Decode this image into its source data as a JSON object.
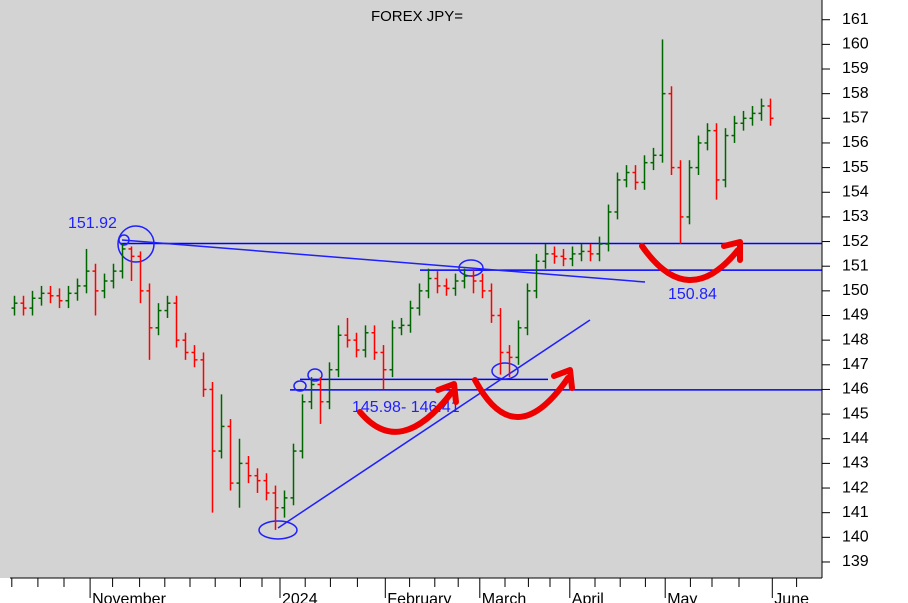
{
  "chart_data": {
    "type": "ohlc",
    "title": "FOREX JPY=",
    "up_color": "#006400",
    "down_color": "#ff0000",
    "ylim": [
      138.35,
      161.8
    ],
    "yticks": [
      139,
      140,
      141,
      142,
      143,
      144,
      145,
      146,
      147,
      148,
      149,
      150,
      151,
      152,
      153,
      154,
      155,
      156,
      157,
      158,
      159,
      160,
      161
    ],
    "xlim": [
      0,
      90
    ],
    "xticks": [
      {
        "value": 8.9,
        "label": "November"
      },
      {
        "value": 30,
        "label": "2024"
      },
      {
        "value": 41.7,
        "label": "February"
      },
      {
        "value": 52.2,
        "label": "March"
      },
      {
        "value": 62.2,
        "label": "April"
      },
      {
        "value": 72.8,
        "label": "May"
      },
      {
        "value": 84.7,
        "label": "June"
      }
    ],
    "xminorticks": [
      0.2,
      3.1,
      6,
      11.4,
      14.4,
      17.2,
      20,
      22.8,
      25.6,
      28,
      32.8,
      35.6,
      38.6,
      44.4,
      47.2,
      49.8,
      55,
      57.6,
      60,
      65,
      67.8,
      70.6,
      75.6,
      78,
      81,
      87.4
    ],
    "open": [
      149.3,
      149.5,
      149.3,
      149.7,
      149.9,
      149.8,
      149.6,
      149.9,
      150.2,
      150.8,
      150.0,
      150.4,
      150.8,
      151.7,
      151.4,
      150.0,
      148.5,
      149.2,
      149.5,
      148.0,
      147.5,
      147.2,
      146.0,
      143.5,
      144.5,
      142.2,
      143.0,
      142.5,
      142.3,
      141.8,
      141.2,
      141.6,
      143.5,
      145.5,
      146.2,
      145.5,
      146.8,
      148.2,
      148.0,
      147.6,
      148.3,
      147.5,
      146.8,
      148.5,
      148.6,
      149.3,
      150.0,
      150.5,
      150.2,
      150.1,
      150.4,
      150.6,
      150.4,
      150.0,
      149.0,
      147.5,
      147.3,
      148.5,
      150.0,
      151.2,
      151.5,
      151.4,
      151.3,
      151.5,
      151.6,
      151.5,
      151.9,
      153.2,
      154.5,
      154.8,
      154.4,
      155.2,
      155.5,
      158.0,
      155.0,
      153.0,
      155.0,
      156.0,
      156.5,
      154.5,
      156.3,
      156.8,
      157.0,
      157.2,
      157.5
    ],
    "high": [
      149.8,
      149.8,
      150.0,
      150.2,
      150.2,
      150.1,
      150.2,
      150.5,
      151.7,
      151.1,
      150.7,
      151.1,
      151.92,
      151.8,
      151.6,
      150.3,
      149.5,
      149.8,
      149.8,
      148.3,
      147.8,
      147.5,
      146.3,
      145.8,
      144.8,
      144.0,
      143.3,
      142.8,
      142.6,
      142.1,
      141.9,
      143.8,
      145.8,
      146.5,
      146.5,
      147.1,
      148.6,
      148.9,
      148.3,
      148.6,
      148.6,
      147.8,
      148.8,
      148.9,
      149.6,
      150.3,
      150.9,
      150.8,
      150.5,
      150.7,
      150.9,
      150.9,
      150.7,
      150.3,
      149.3,
      147.8,
      148.8,
      150.3,
      151.5,
      151.9,
      151.8,
      151.7,
      151.8,
      151.9,
      151.9,
      152.2,
      153.5,
      154.8,
      155.1,
      155.1,
      155.5,
      155.8,
      160.2,
      158.3,
      155.3,
      155.3,
      156.3,
      156.8,
      156.8,
      156.6,
      157.1,
      157.3,
      157.5,
      157.8,
      157.8
    ],
    "low": [
      149.0,
      149.0,
      149.0,
      149.4,
      149.5,
      149.3,
      149.3,
      149.6,
      149.9,
      149.0,
      149.7,
      150.1,
      150.5,
      150.4,
      149.5,
      147.2,
      148.2,
      148.9,
      147.7,
      147.2,
      146.9,
      145.7,
      141.0,
      143.2,
      141.9,
      141.2,
      142.2,
      141.8,
      141.5,
      140.3,
      140.8,
      141.3,
      143.2,
      145.2,
      144.6,
      145.2,
      146.5,
      147.7,
      147.3,
      147.3,
      147.2,
      146.0,
      146.5,
      148.2,
      148.3,
      149.0,
      149.7,
      149.9,
      149.8,
      149.8,
      150.1,
      149.9,
      149.7,
      148.7,
      146.6,
      146.5,
      147.0,
      148.2,
      149.7,
      150.9,
      151.1,
      151.0,
      151.0,
      151.2,
      151.2,
      151.2,
      151.6,
      152.9,
      154.2,
      154.1,
      154.1,
      154.9,
      155.2,
      154.7,
      151.9,
      152.7,
      154.7,
      155.7,
      153.7,
      154.2,
      156.0,
      156.5,
      156.7,
      156.9,
      156.7
    ],
    "close": [
      149.5,
      149.3,
      149.7,
      149.9,
      149.8,
      149.6,
      149.9,
      150.2,
      150.8,
      150.0,
      150.4,
      150.8,
      151.7,
      151.4,
      150.0,
      148.5,
      149.2,
      149.5,
      148.0,
      147.5,
      147.2,
      146.0,
      143.5,
      144.5,
      142.2,
      143.0,
      142.5,
      142.3,
      141.8,
      141.2,
      141.6,
      143.5,
      145.5,
      146.2,
      145.5,
      146.8,
      148.2,
      148.0,
      147.6,
      148.3,
      147.5,
      146.8,
      148.5,
      148.6,
      149.3,
      150.0,
      150.5,
      150.2,
      150.1,
      150.4,
      150.6,
      150.4,
      150.0,
      149.0,
      147.5,
      147.3,
      148.5,
      150.0,
      151.2,
      151.5,
      151.4,
      151.3,
      151.5,
      151.6,
      151.5,
      151.9,
      153.2,
      154.5,
      154.8,
      154.4,
      155.2,
      155.5,
      158.0,
      155.0,
      153.0,
      155.0,
      156.0,
      156.5,
      154.5,
      156.3,
      156.8,
      157.0,
      157.2,
      157.5,
      157.0
    ],
    "levels": [
      151.92,
      150.84,
      146.41,
      145.98
    ],
    "level_color": "#0000ff",
    "annotations": [
      151.92,
      150.84,
      "145.98- 146.41"
    ]
  }
}
